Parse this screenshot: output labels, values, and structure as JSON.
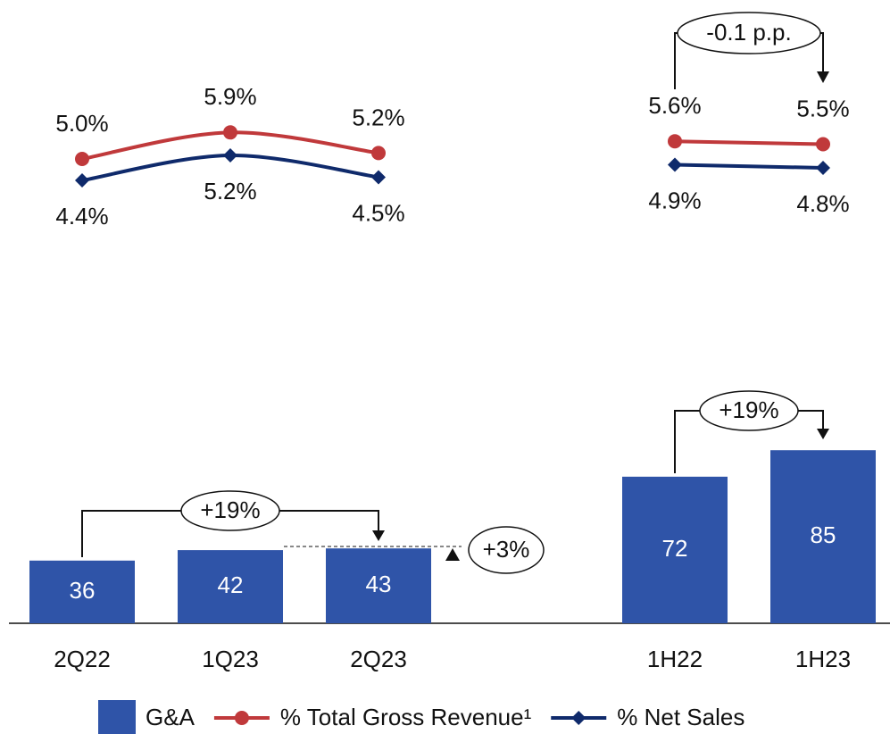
{
  "chart_data": {
    "type": "bar-line",
    "categories": [
      "2Q22",
      "1Q23",
      "2Q23",
      "1H22",
      "1H23"
    ],
    "series": [
      {
        "name": "G&A",
        "type": "bar",
        "color": "#2f54a8",
        "values": [
          36,
          42,
          43,
          72,
          85
        ]
      },
      {
        "name": "% Total Gross Revenue¹",
        "type": "line",
        "marker": "circle",
        "color": "#c0393b",
        "values": [
          5.0,
          5.9,
          5.2,
          5.6,
          5.5
        ],
        "value_labels": [
          "5.0%",
          "5.9%",
          "5.2%",
          "5.6%",
          "5.5%"
        ]
      },
      {
        "name": "% Net Sales",
        "type": "line",
        "marker": "diamond",
        "color": "#0f2a6b",
        "values": [
          4.4,
          5.2,
          4.5,
          4.9,
          4.8
        ],
        "value_labels": [
          "4.4%",
          "5.2%",
          "4.5%",
          "4.9%",
          "4.8%"
        ]
      }
    ],
    "annotations": [
      "+19%",
      "+3%",
      "+19%",
      "-0.1 p.p."
    ]
  }
}
